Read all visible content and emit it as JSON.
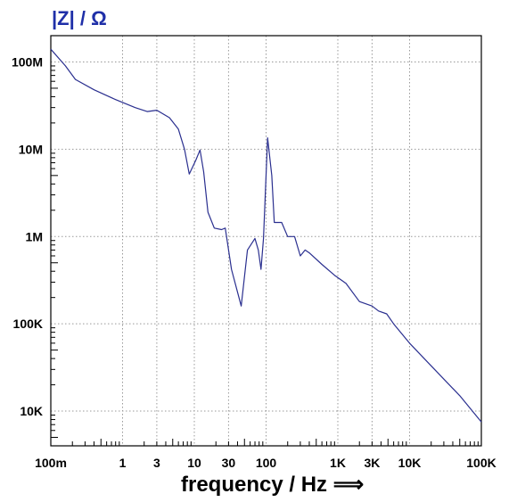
{
  "chart_data": {
    "type": "line",
    "ylabel": "|Z| / Ω",
    "xlabel": "frequency / Hz ⟹",
    "x_scale": "log",
    "y_scale": "log",
    "xlim": [
      0.1,
      100000
    ],
    "ylim": [
      4000,
      200000000
    ],
    "grid": true,
    "x_ticks": [
      {
        "value": 0.1,
        "label": "100m"
      },
      {
        "value": 1,
        "label": "1"
      },
      {
        "value": 3,
        "label": "3"
      },
      {
        "value": 10,
        "label": "10"
      },
      {
        "value": 30,
        "label": "30"
      },
      {
        "value": 100,
        "label": "100"
      },
      {
        "value": 1000,
        "label": "1K"
      },
      {
        "value": 3000,
        "label": "3K"
      },
      {
        "value": 10000,
        "label": "10K"
      },
      {
        "value": 100000,
        "label": "100K"
      }
    ],
    "y_ticks": [
      {
        "value": 10000,
        "label": "10K"
      },
      {
        "value": 100000,
        "label": "100K"
      },
      {
        "value": 1000000,
        "label": "1M"
      },
      {
        "value": 10000000,
        "label": "10M"
      },
      {
        "value": 100000000,
        "label": "100M"
      }
    ],
    "colors": {
      "line": "#2a2f8f",
      "ylabel": "#1f2fa8",
      "grid": "#999999"
    },
    "series": [
      {
        "values": [
          [
            0.1,
            140000000
          ],
          [
            0.16,
            90000000
          ],
          [
            0.22,
            63000000
          ],
          [
            0.4,
            48000000
          ],
          [
            0.8,
            37000000
          ],
          [
            1.5,
            30000000
          ],
          [
            2.2,
            27000000
          ],
          [
            3.0,
            28000000
          ],
          [
            4.5,
            23000000
          ],
          [
            6.0,
            17000000
          ],
          [
            7.3,
            10000000
          ],
          [
            8.5,
            5200000
          ],
          [
            10.5,
            7500000
          ],
          [
            12.0,
            9800000
          ],
          [
            13.5,
            5500000
          ],
          [
            15.5,
            1900000
          ],
          [
            19.0,
            1250000
          ],
          [
            24.0,
            1200000
          ],
          [
            27.0,
            1250000
          ],
          [
            33.0,
            420000
          ],
          [
            45.0,
            160000
          ],
          [
            55.0,
            700000
          ],
          [
            70.0,
            950000
          ],
          [
            78.0,
            700000
          ],
          [
            85.0,
            420000
          ],
          [
            92.0,
            950000
          ],
          [
            105.0,
            13500000
          ],
          [
            120.0,
            5000000
          ],
          [
            130.0,
            1450000
          ],
          [
            165.0,
            1450000
          ],
          [
            200.0,
            1000000
          ],
          [
            250.0,
            1000000
          ],
          [
            300.0,
            600000
          ],
          [
            350.0,
            700000
          ],
          [
            400.0,
            650000
          ],
          [
            600.0,
            480000
          ],
          [
            900.0,
            360000
          ],
          [
            1300.0,
            290000
          ],
          [
            2000.0,
            180000
          ],
          [
            3000.0,
            160000
          ],
          [
            3700.0,
            140000
          ],
          [
            4800.0,
            130000
          ],
          [
            6000.0,
            100000
          ],
          [
            10000.0,
            60000
          ],
          [
            20000.0,
            33000
          ],
          [
            50000.0,
            15000
          ],
          [
            100000.0,
            7500
          ]
        ]
      }
    ]
  }
}
